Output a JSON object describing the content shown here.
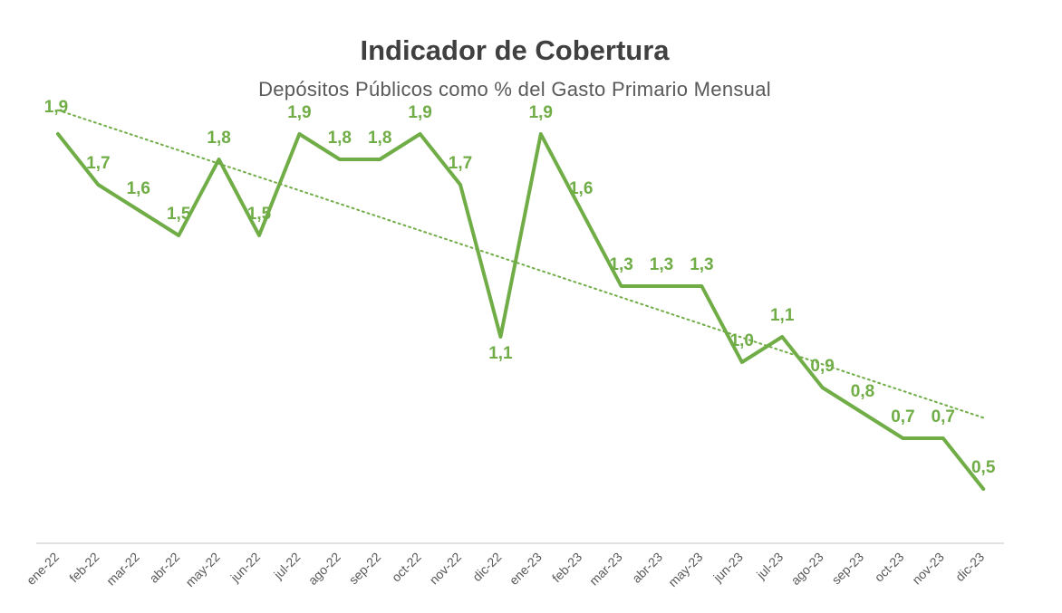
{
  "chart_data": {
    "type": "line",
    "title": "Indicador de Cobertura",
    "subtitle": "Depósitos Públicos como % del Gasto Primario Mensual",
    "categories": [
      "ene-22",
      "feb-22",
      "mar-22",
      "abr-22",
      "may-22",
      "jun-22",
      "jul-22",
      "ago-22",
      "sep-22",
      "oct-22",
      "nov-22",
      "dic-22",
      "ene-23",
      "feb-23",
      "mar-23",
      "abr-23",
      "may-23",
      "jun-23",
      "jul-23",
      "ago-23",
      "sep-23",
      "oct-23",
      "nov-23",
      "dic-23"
    ],
    "series": [
      {
        "name": "Indicador de Cobertura",
        "values": [
          1.9,
          1.7,
          1.6,
          1.5,
          1.8,
          1.5,
          1.9,
          1.8,
          1.8,
          1.9,
          1.7,
          1.1,
          1.9,
          1.6,
          1.3,
          1.3,
          1.3,
          1.0,
          1.1,
          0.9,
          0.8,
          0.7,
          0.7,
          0.5
        ],
        "labels": [
          "1,9",
          "1,7",
          "1,6",
          "1,5",
          "1,8",
          "1,5",
          "1,9",
          "1,8",
          "1,8",
          "1,9",
          "1,7",
          "1,1",
          "1,9",
          "1,6",
          "1,3",
          "1,3",
          "1,3",
          "1,0",
          "1,1",
          "0,9",
          "0,8",
          "0,7",
          "0,7",
          "0,5"
        ]
      }
    ],
    "trendline": {
      "type": "linear",
      "style": "dotted"
    },
    "xlabel": "",
    "ylabel": "",
    "ylim": [
      0.3,
      2.0
    ],
    "grid": false,
    "legend": "none",
    "colors": {
      "line": "#70AD47",
      "trend": "#70AD47",
      "axis": "#D9D9D9",
      "tick_text": "#595959",
      "title": "#404040",
      "subtitle": "#595959"
    }
  }
}
